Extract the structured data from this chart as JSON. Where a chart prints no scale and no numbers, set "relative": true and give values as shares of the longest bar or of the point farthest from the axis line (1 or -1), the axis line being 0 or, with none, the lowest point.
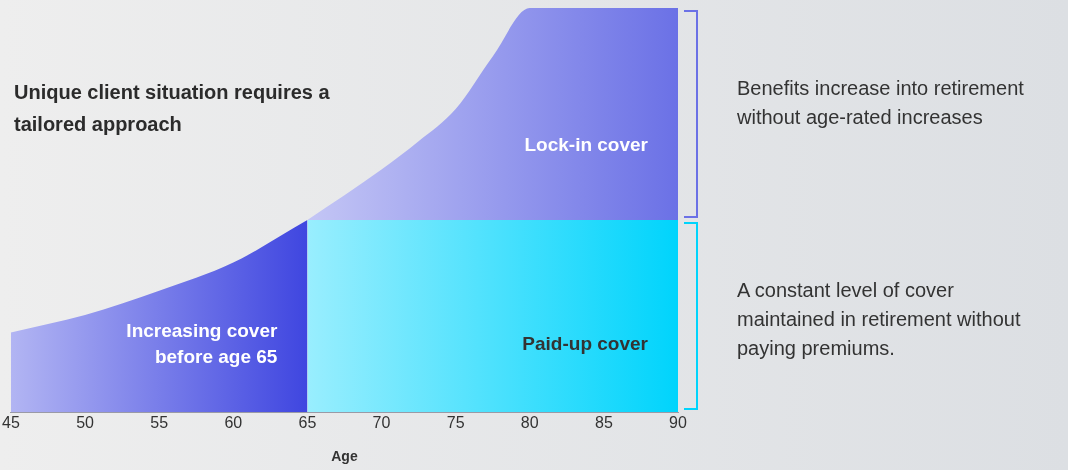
{
  "chart_data": {
    "type": "area",
    "title": "Unique client situation requires a tailored approach",
    "xlabel": "Age",
    "relative": true,
    "xlim": [
      45,
      90
    ],
    "xticks": [
      45,
      50,
      55,
      60,
      65,
      70,
      75,
      80,
      85,
      90
    ],
    "series": [
      {
        "name": "Increasing cover before age 65",
        "color": "#3f46e0",
        "x": [
          45,
          50,
          55,
          60,
          65
        ],
        "values": [
          0.197,
          0.24,
          0.3,
          0.37,
          0.475
        ]
      },
      {
        "name": "Paid-up cover",
        "color": "#00d4fc",
        "x": [
          65,
          70,
          75,
          80,
          85,
          90
        ],
        "values": [
          0.475,
          0.475,
          0.475,
          0.475,
          0.475,
          0.475
        ]
      },
      {
        "name": "Lock-in cover",
        "color": "#6b71e6",
        "x": [
          65,
          70,
          72.5,
          75,
          77.5,
          80,
          85,
          90
        ],
        "values": [
          0.475,
          0.6,
          0.67,
          0.75,
          0.88,
          1,
          1,
          1
        ]
      }
    ],
    "annotations": [
      "Benefits increase into retirement without age-rated increases",
      "A constant level of cover maintained in retirement without paying premiums."
    ]
  }
}
